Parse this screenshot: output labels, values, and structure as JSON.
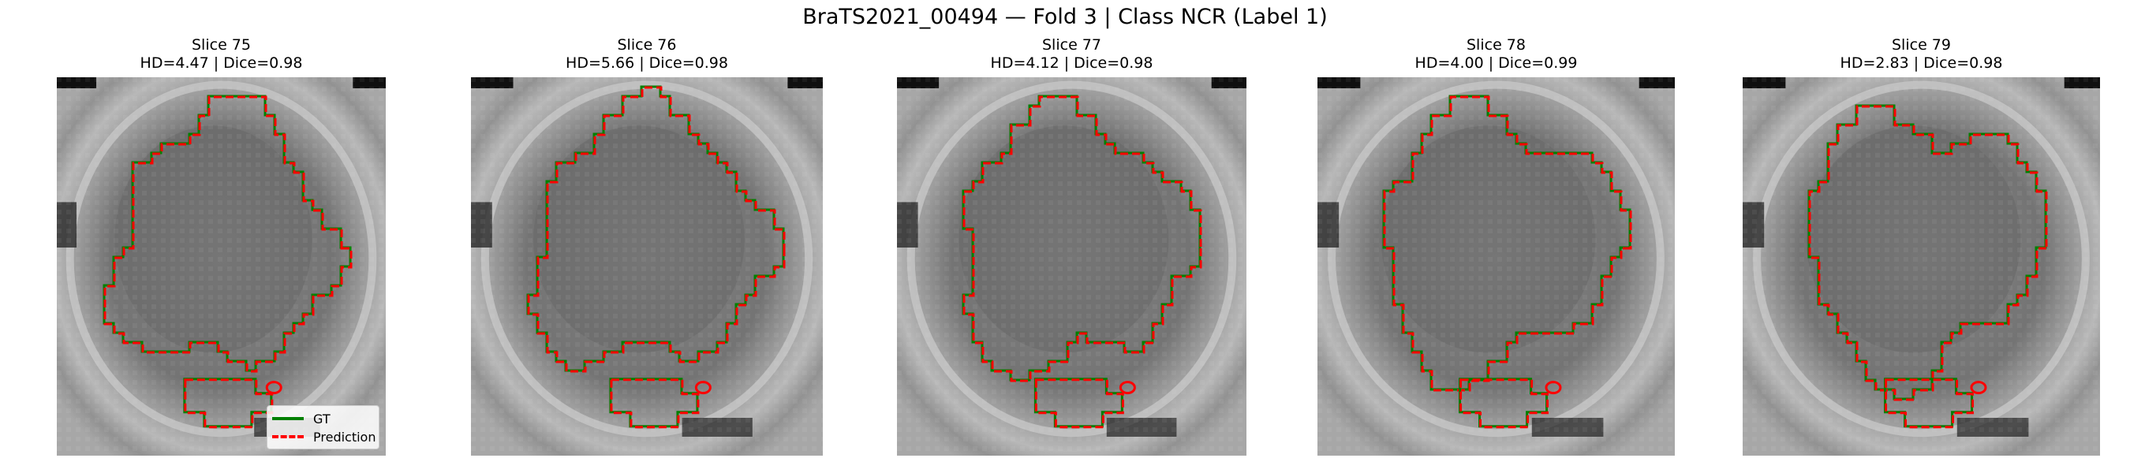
{
  "title": "BraTS2021_00494 — Fold 3 | Class NCR (Label 1)",
  "legend": {
    "gt_label": "GT",
    "pred_label": "Prediction"
  },
  "colors": {
    "gt": "#008000",
    "prediction": "#ff0000"
  },
  "panels": [
    {
      "slice": "Slice 75",
      "metrics": "HD=4.47 | Dice=0.98"
    },
    {
      "slice": "Slice 76",
      "metrics": "HD=5.66 | Dice=0.98"
    },
    {
      "slice": "Slice 77",
      "metrics": "HD=4.12 | Dice=0.98"
    },
    {
      "slice": "Slice 78",
      "metrics": "HD=4.00 | Dice=0.99"
    },
    {
      "slice": "Slice 79",
      "metrics": "HD=2.83 | Dice=0.98"
    }
  ]
}
